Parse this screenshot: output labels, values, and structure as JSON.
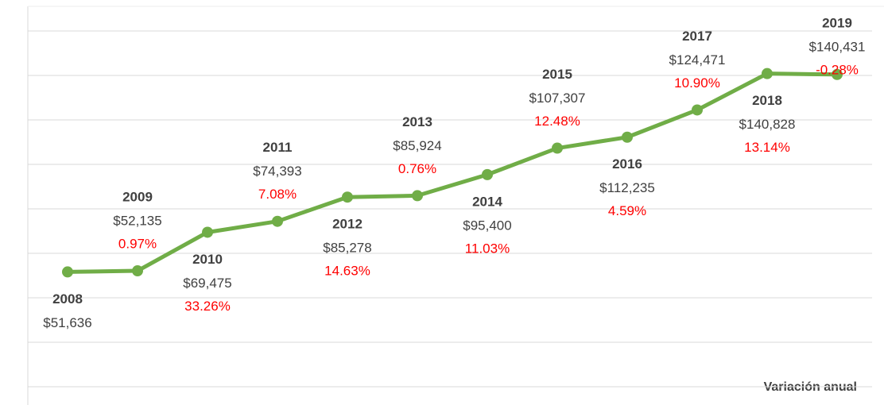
{
  "chart_data": {
    "type": "line",
    "categories": [
      "2008",
      "2009",
      "2010",
      "2011",
      "2012",
      "2013",
      "2014",
      "2015",
      "2016",
      "2017",
      "2018",
      "2019"
    ],
    "series": [
      {
        "color": "#70ad47",
        "values": [
          51636,
          52135,
          69475,
          74393,
          85278,
          85924,
          95400,
          107307,
          112235,
          124471,
          140828,
          140431
        ],
        "value_labels": [
          "$51,636",
          "$52,135",
          "$69,475",
          "$74,393",
          "$85,278",
          "$85,924",
          "$95,400",
          "$107,307",
          "$112,235",
          "$124,471",
          "$140,828",
          "$140,431"
        ]
      }
    ],
    "variation": {
      "name": "Variación anual",
      "color": "#ff0000",
      "values": [
        null,
        0.97,
        33.26,
        7.08,
        14.63,
        0.76,
        11.03,
        12.48,
        4.59,
        10.9,
        13.14,
        -0.28
      ],
      "value_labels": [
        null,
        "0.97%",
        "33.26%",
        "7.08%",
        "14.63%",
        "0.76%",
        "11.03%",
        "12.48%",
        "4.59%",
        "10.90%",
        "13.14%",
        "-0.28%"
      ]
    },
    "ylim": [
      0,
      160000
    ],
    "yticks": [
      0,
      20000,
      40000,
      60000,
      80000,
      100000,
      120000,
      140000,
      160000
    ],
    "grid": true
  }
}
